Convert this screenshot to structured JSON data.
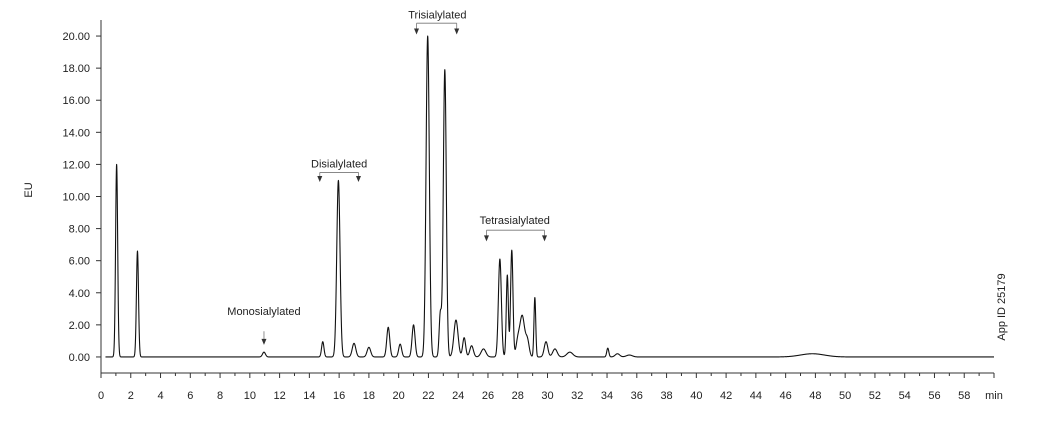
{
  "chart_data": {
    "type": "line",
    "xlabel": "min",
    "ylabel": "EU",
    "xlim": [
      0,
      60
    ],
    "ylim": [
      -1.0,
      21.0
    ],
    "x_ticks": [
      0,
      2,
      4,
      6,
      8,
      10,
      12,
      14,
      16,
      18,
      20,
      22,
      24,
      26,
      28,
      30,
      32,
      34,
      36,
      38,
      40,
      42,
      44,
      46,
      48,
      50,
      52,
      54,
      56,
      58
    ],
    "x_tick_labels": [
      "0",
      "2",
      "4",
      "6",
      "8",
      "10",
      "12",
      "14",
      "16",
      "18",
      "20",
      "22",
      "24",
      "26",
      "28",
      "30",
      "32",
      "34",
      "36",
      "38",
      "40",
      "42",
      "44",
      "46",
      "48",
      "50",
      "52",
      "54",
      "56",
      "58"
    ],
    "y_ticks": [
      0,
      2,
      4,
      6,
      8,
      10,
      12,
      14,
      16,
      18,
      20
    ],
    "y_tick_labels": [
      "0.00",
      "2.00",
      "4.00",
      "6.00",
      "8.00",
      "10.00",
      "12.00",
      "14.00",
      "16.00",
      "18.00",
      "20.00"
    ],
    "grid": false,
    "line_color": "#111111",
    "baseline": 0.0,
    "peaks": [
      {
        "x": 1.05,
        "y": 12.0,
        "w": 0.07
      },
      {
        "x": 2.45,
        "y": 6.6,
        "w": 0.07
      },
      {
        "x": 10.95,
        "y": 0.3,
        "w": 0.1
      },
      {
        "x": 14.9,
        "y": 0.95,
        "w": 0.08
      },
      {
        "x": 15.95,
        "y": 11.0,
        "w": 0.11
      },
      {
        "x": 17.0,
        "y": 0.85,
        "w": 0.12
      },
      {
        "x": 18.0,
        "y": 0.6,
        "w": 0.12
      },
      {
        "x": 19.3,
        "y": 1.85,
        "w": 0.1
      },
      {
        "x": 20.1,
        "y": 0.8,
        "w": 0.1
      },
      {
        "x": 21.0,
        "y": 2.0,
        "w": 0.1
      },
      {
        "x": 21.95,
        "y": 20.0,
        "w": 0.11
      },
      {
        "x": 22.8,
        "y": 2.7,
        "w": 0.08
      },
      {
        "x": 23.1,
        "y": 17.9,
        "w": 0.1
      },
      {
        "x": 23.85,
        "y": 2.3,
        "w": 0.14
      },
      {
        "x": 24.4,
        "y": 1.2,
        "w": 0.1
      },
      {
        "x": 24.9,
        "y": 0.7,
        "w": 0.12
      },
      {
        "x": 25.7,
        "y": 0.5,
        "w": 0.16
      },
      {
        "x": 26.8,
        "y": 6.1,
        "w": 0.1
      },
      {
        "x": 27.3,
        "y": 5.1,
        "w": 0.07
      },
      {
        "x": 27.6,
        "y": 6.65,
        "w": 0.08
      },
      {
        "x": 28.0,
        "y": 0.9,
        "w": 0.12
      },
      {
        "x": 28.3,
        "y": 2.55,
        "w": 0.16
      },
      {
        "x": 28.65,
        "y": 1.0,
        "w": 0.12
      },
      {
        "x": 29.15,
        "y": 3.7,
        "w": 0.06
      },
      {
        "x": 29.9,
        "y": 0.95,
        "w": 0.12
      },
      {
        "x": 30.5,
        "y": 0.5,
        "w": 0.15
      },
      {
        "x": 31.5,
        "y": 0.3,
        "w": 0.2
      },
      {
        "x": 34.05,
        "y": 0.55,
        "w": 0.07
      },
      {
        "x": 34.7,
        "y": 0.2,
        "w": 0.15
      },
      {
        "x": 35.5,
        "y": 0.12,
        "w": 0.2
      },
      {
        "x": 47.8,
        "y": 0.2,
        "w": 0.8
      }
    ],
    "annotations": [
      {
        "label": "Monosialylated",
        "arrows": [
          10.95
        ],
        "label_x": 10.95,
        "label_y": 2.6,
        "arrow_top": 1.6,
        "arrow_tip": 0.75,
        "bracket": false
      },
      {
        "label": "Disialylated",
        "arrows": [
          14.7,
          17.3
        ],
        "label_x": 16.0,
        "label_y": 11.8,
        "bracket_y": 11.5,
        "arrow_tip": 10.9,
        "bracket": true
      },
      {
        "label": "Trisialylated",
        "arrows": [
          21.2,
          23.9
        ],
        "label_x": 22.6,
        "label_y": 21.1,
        "bracket_y": 20.8,
        "arrow_tip": 20.1,
        "bracket": true
      },
      {
        "label": "Tetrasialylated",
        "arrows": [
          25.9,
          29.8
        ],
        "label_x": 27.8,
        "label_y": 8.3,
        "bracket_y": 7.9,
        "arrow_tip": 7.2,
        "bracket": true
      }
    ]
  },
  "side_note": "App ID 25179"
}
